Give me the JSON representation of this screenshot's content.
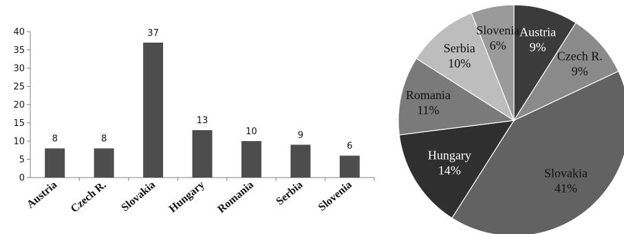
{
  "chart_data": [
    {
      "type": "bar",
      "categories": [
        "Austria",
        "Czech R.",
        "Slovakia",
        "Hungary",
        "Romania",
        "Serbia",
        "Slovenia"
      ],
      "values": [
        8,
        8,
        37,
        13,
        10,
        9,
        6
      ],
      "ylim": [
        0,
        40
      ],
      "yticks": [
        "0",
        "5",
        "10",
        "15",
        "20",
        "25",
        "30",
        "35",
        "40"
      ],
      "data_labels": [
        "8",
        "8",
        "37",
        "13",
        "10",
        "9",
        "6"
      ],
      "grid": false,
      "bar_color": "#4d4d4d",
      "axis_color": "#7f7f7f"
    },
    {
      "type": "pie",
      "slices": [
        {
          "label": "Austria",
          "pct_label": "9%",
          "value": 9,
          "color": "#3b3b3b",
          "text_color": "#ffffff"
        },
        {
          "label": "Czech R.",
          "pct_label": "9%",
          "value": 9,
          "color": "#8a8a8a",
          "text_color": "#111111"
        },
        {
          "label": "Slovakia",
          "pct_label": "41%",
          "value": 41,
          "color": "#626262",
          "text_color": "#111111"
        },
        {
          "label": "Hungary",
          "pct_label": "14%",
          "value": 14,
          "color": "#2f2f2f",
          "text_color": "#ffffff"
        },
        {
          "label": "Romania",
          "pct_label": "11%",
          "value": 11,
          "color": "#7a7a7a",
          "text_color": "#111111"
        },
        {
          "label": "Serbia",
          "pct_label": "10%",
          "value": 10,
          "color": "#bdbdbd",
          "text_color": "#111111"
        },
        {
          "label": "Slovenia",
          "pct_label": "6%",
          "value": 6,
          "color": "#9a9a9a",
          "text_color": "#111111"
        }
      ]
    }
  ]
}
